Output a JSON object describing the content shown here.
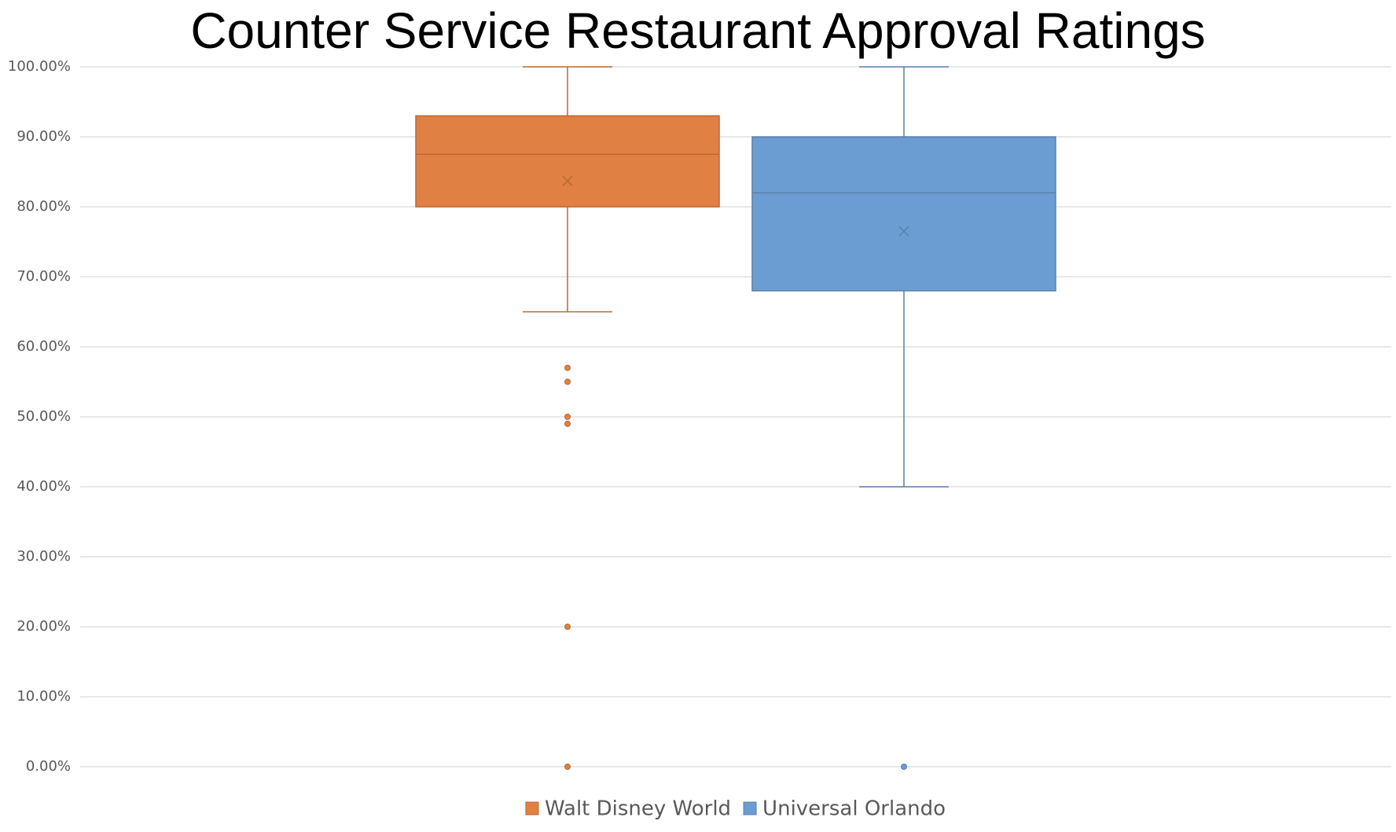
{
  "chart_data": {
    "type": "box",
    "title": "Counter Service Restaurant Approval Ratings",
    "series": [
      {
        "name": "Walt Disney World",
        "color": "#E08043",
        "min": 65,
        "q1": 80,
        "median": 87.5,
        "q3": 93,
        "max": 100,
        "mean": 83.7,
        "outliers": [
          57,
          55,
          50,
          49,
          20,
          0
        ]
      },
      {
        "name": "Universal Orlando",
        "color": "#6B9CD2",
        "min": 40,
        "q1": 68,
        "median": 82,
        "q3": 90,
        "max": 100,
        "mean": 76.5,
        "outliers": [
          0
        ]
      }
    ],
    "ylim": [
      0,
      100
    ],
    "yticks": [
      {
        "value": 0,
        "label": "0.00%"
      },
      {
        "value": 10,
        "label": "10.00%"
      },
      {
        "value": 20,
        "label": "20.00%"
      },
      {
        "value": 30,
        "label": "30.00%"
      },
      {
        "value": 40,
        "label": "40.00%"
      },
      {
        "value": 50,
        "label": "50.00%"
      },
      {
        "value": 60,
        "label": "60.00%"
      },
      {
        "value": 70,
        "label": "70.00%"
      },
      {
        "value": 80,
        "label": "80.00%"
      },
      {
        "value": 90,
        "label": "90.00%"
      },
      {
        "value": 100,
        "label": "100.00%"
      }
    ],
    "grid": true,
    "legend": "bottom"
  }
}
